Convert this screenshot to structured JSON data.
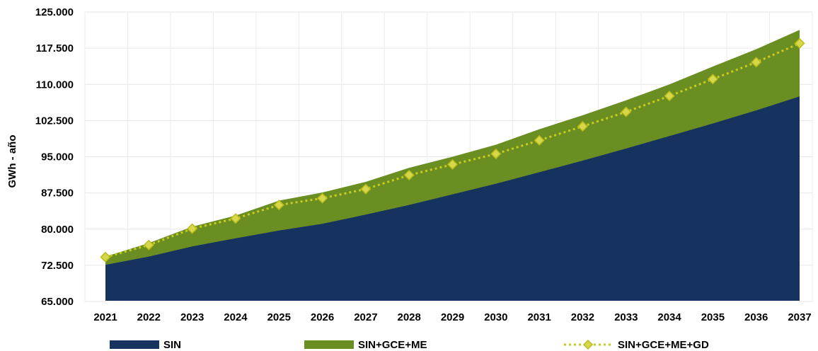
{
  "chart_data": {
    "type": "area",
    "xlabel": "",
    "ylabel": "GWh - año",
    "ylim": [
      65000,
      125000
    ],
    "yticks": [
      65000,
      72500,
      80000,
      87500,
      95000,
      102500,
      110000,
      117500,
      125000
    ],
    "ytick_labels": [
      "65.000",
      "72.500",
      "80.000",
      "87.500",
      "95.000",
      "102.500",
      "110.000",
      "117.500",
      "125.000"
    ],
    "categories": [
      "2021",
      "2022",
      "2023",
      "2024",
      "2025",
      "2026",
      "2027",
      "2028",
      "2029",
      "2030",
      "2031",
      "2032",
      "2033",
      "2034",
      "2035",
      "2036",
      "2037"
    ],
    "grid": true,
    "legend_position": "bottom",
    "series": [
      {
        "name": "SIN",
        "kind": "area",
        "color": "#15335e",
        "values": [
          72600,
          74300,
          76400,
          78100,
          79700,
          81100,
          83000,
          85000,
          87200,
          89400,
          91800,
          94200,
          96700,
          99300,
          101900,
          104600,
          107500
        ]
      },
      {
        "name": "SIN+GCE+ME",
        "kind": "area",
        "color": "#6b8e23",
        "values": [
          74300,
          77100,
          80500,
          82800,
          85900,
          87600,
          89800,
          92700,
          95000,
          97500,
          100700,
          103600,
          106700,
          110000,
          113700,
          117300,
          121300
        ]
      },
      {
        "name": "SIN+GCE+ME+GD",
        "kind": "line",
        "color": "#c8cc1e",
        "marker": "diamond",
        "linestyle": "dotted",
        "values": [
          74200,
          76700,
          80100,
          82200,
          85000,
          86400,
          88300,
          91200,
          93400,
          95600,
          98400,
          101300,
          104300,
          107600,
          111100,
          114600,
          118500
        ]
      }
    ]
  }
}
